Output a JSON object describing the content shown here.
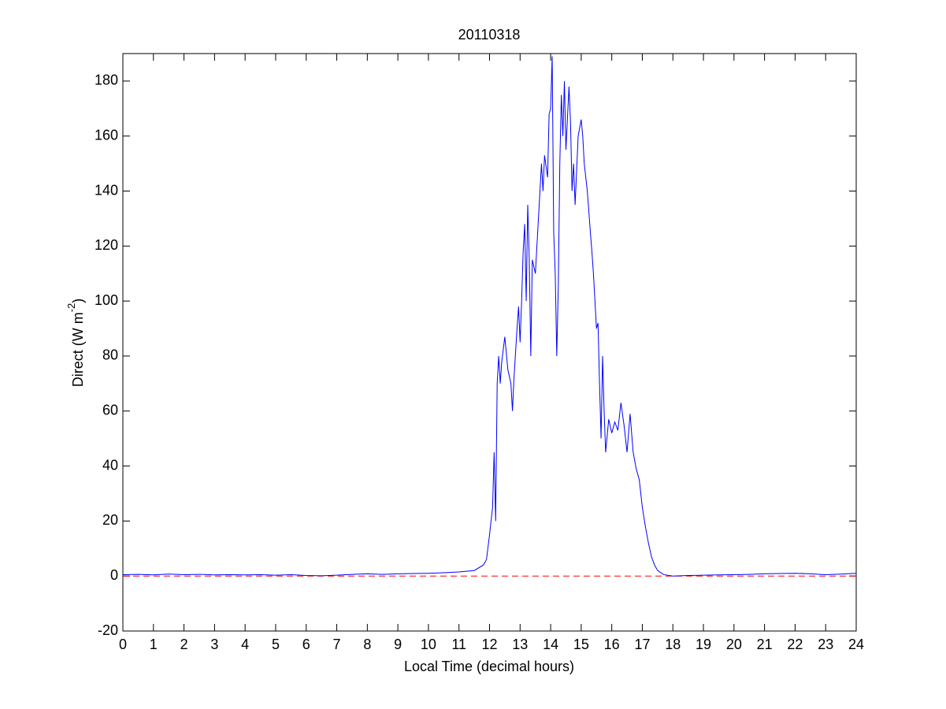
{
  "chart_data": {
    "type": "line",
    "title": "20110318",
    "xlabel": "Local Time (decimal hours)",
    "ylabel_parts": [
      "Direct (W m",
      "-2",
      ")"
    ],
    "xlim": [
      0,
      24
    ],
    "ylim": [
      -20,
      190
    ],
    "xticks": [
      0,
      1,
      2,
      3,
      4,
      5,
      6,
      7,
      8,
      9,
      10,
      11,
      12,
      13,
      14,
      15,
      16,
      17,
      18,
      19,
      20,
      21,
      22,
      23,
      24
    ],
    "yticks": [
      -20,
      0,
      20,
      40,
      60,
      80,
      100,
      120,
      140,
      160,
      180
    ],
    "reference_line": {
      "value": 0,
      "color": "#ff0000",
      "style": "dashed"
    },
    "series": [
      {
        "color": "#0000ff",
        "x": [
          0,
          0.5,
          1,
          1.5,
          2,
          2.5,
          3,
          3.5,
          4,
          4.5,
          5,
          5.5,
          6,
          6.5,
          7,
          7.5,
          8,
          8.5,
          9,
          9.5,
          10,
          10.5,
          11,
          11.5,
          11.8,
          11.9,
          12.0,
          12.1,
          12.15,
          12.2,
          12.25,
          12.3,
          12.35,
          12.4,
          12.5,
          12.6,
          12.7,
          12.75,
          12.8,
          12.9,
          12.95,
          13.0,
          13.05,
          13.1,
          13.15,
          13.2,
          13.25,
          13.3,
          13.35,
          13.4,
          13.5,
          13.6,
          13.7,
          13.75,
          13.8,
          13.9,
          13.95,
          14.0,
          14.05,
          14.1,
          14.15,
          14.2,
          14.25,
          14.3,
          14.35,
          14.4,
          14.45,
          14.5,
          14.6,
          14.65,
          14.7,
          14.75,
          14.8,
          14.9,
          15.0,
          15.05,
          15.1,
          15.2,
          15.3,
          15.35,
          15.4,
          15.5,
          15.55,
          15.6,
          15.65,
          15.7,
          15.75,
          15.8,
          15.9,
          16.0,
          16.1,
          16.2,
          16.3,
          16.4,
          16.5,
          16.6,
          16.7,
          16.8,
          16.9,
          17.0,
          17.1,
          17.2,
          17.3,
          17.4,
          17.5,
          17.7,
          18.0,
          18.5,
          19,
          19.5,
          20,
          20.5,
          21,
          21.5,
          22,
          22.5,
          23,
          23.5,
          24
        ],
        "values": [
          0.5,
          0.6,
          0.4,
          0.7,
          0.5,
          0.6,
          0.4,
          0.5,
          0.4,
          0.5,
          0.3,
          0.5,
          0.2,
          0.1,
          0.3,
          0.6,
          0.8,
          0.6,
          0.8,
          0.9,
          1.0,
          1.2,
          1.5,
          2.0,
          4,
          6,
          15,
          25,
          45,
          20,
          70,
          80,
          70,
          78,
          87,
          75,
          70,
          60,
          72,
          90,
          98,
          85,
          100,
          118,
          128,
          100,
          135,
          115,
          80,
          115,
          110,
          130,
          150,
          140,
          153,
          145,
          168,
          170,
          189,
          125,
          110,
          80,
          105,
          150,
          175,
          160,
          180,
          155,
          178,
          165,
          140,
          150,
          135,
          160,
          166,
          160,
          150,
          140,
          125,
          118,
          110,
          90,
          92,
          70,
          50,
          80,
          60,
          45,
          57,
          52,
          56,
          53,
          63,
          55,
          45,
          59,
          45,
          39,
          35,
          25,
          18,
          12,
          7,
          4,
          2,
          0.5,
          0,
          0.2,
          0.3,
          0.4,
          0.5,
          0.6,
          0.8,
          0.9,
          1.0,
          0.8,
          0.5,
          0.7,
          1.0
        ]
      }
    ]
  }
}
